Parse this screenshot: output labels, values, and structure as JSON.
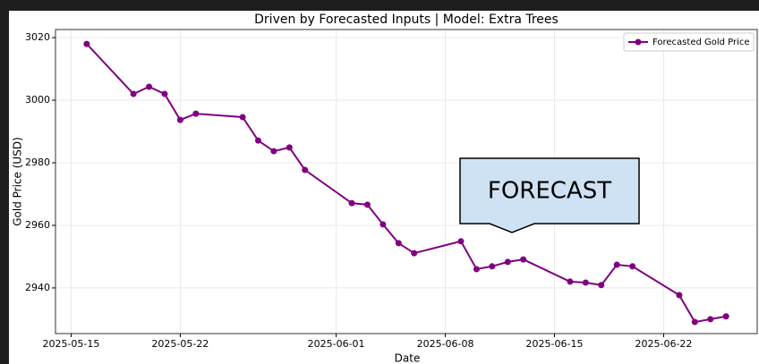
{
  "chart_data": {
    "type": "line",
    "title": "Driven by Forecasted Inputs | Model: Extra Trees",
    "xlabel": "Date",
    "ylabel": "Gold Price (USD)",
    "annotation": "FORECAST",
    "x": [
      "2025-05-16",
      "2025-05-19",
      "2025-05-20",
      "2025-05-21",
      "2025-05-22",
      "2025-05-23",
      "2025-05-26",
      "2025-05-27",
      "2025-05-28",
      "2025-05-29",
      "2025-05-30",
      "2025-06-02",
      "2025-06-03",
      "2025-06-04",
      "2025-06-05",
      "2025-06-06",
      "2025-06-09",
      "2025-06-10",
      "2025-06-11",
      "2025-06-12",
      "2025-06-13",
      "2025-06-16",
      "2025-06-17",
      "2025-06-18",
      "2025-06-19",
      "2025-06-20",
      "2025-06-23",
      "2025-06-24",
      "2025-06-25",
      "2025-06-26"
    ],
    "series": [
      {
        "name": "Forecasted Gold Price",
        "color": "#800080",
        "values": [
          3018,
          3002,
          3004.3,
          3002,
          2993.7,
          2995.7,
          2994.6,
          2987.1,
          2983.7,
          2984.9,
          2977.7,
          2967.1,
          2966.6,
          2960.3,
          2954.3,
          2951.1,
          2954.9,
          2946,
          2946.9,
          2948.3,
          2949.1,
          2942,
          2941.7,
          2940.9,
          2947.4,
          2946.9,
          2937.7,
          2929.1,
          2930,
          2930.9
        ]
      }
    ],
    "xlim": [
      "2025-05-14",
      "2025-06-28"
    ],
    "xticks": [
      "2025-05-15",
      "2025-05-22",
      "2025-06-01",
      "2025-06-08",
      "2025-06-15",
      "2025-06-22"
    ],
    "ylim": [
      2925.4,
      3022.6
    ],
    "yticks": [
      2940,
      2960,
      2980,
      3000,
      3020
    ],
    "grid": true,
    "legend": "upper right"
  }
}
